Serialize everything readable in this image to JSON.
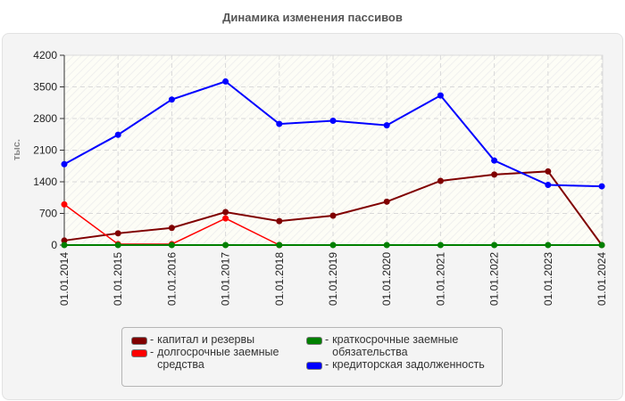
{
  "title": "Динамика изменения пассивов",
  "chart_data": {
    "type": "line",
    "title": "Динамика изменения пассивов",
    "xlabel": "",
    "ylabel": "тыс.",
    "ylim": [
      0,
      4200
    ],
    "yticks": [
      0,
      700,
      1400,
      2100,
      2800,
      3500,
      4200
    ],
    "grid": true,
    "legend_position": "bottom",
    "categories": [
      "01.01.2014",
      "01.01.2015",
      "01.01.2016",
      "01.01.2017",
      "01.01.2018",
      "01.01.2019",
      "01.01.2020",
      "01.01.2021",
      "01.01.2022",
      "01.01.2023",
      "01.01.2024"
    ],
    "series": [
      {
        "name": "капитал и резервы",
        "color": "#800000",
        "values": [
          100,
          260,
          380,
          730,
          530,
          650,
          960,
          1420,
          1560,
          1630,
          0
        ]
      },
      {
        "name": "долгосрочные заемные средства",
        "color": "#ff0000",
        "values": [
          900,
          20,
          20,
          590,
          0,
          null,
          null,
          null,
          null,
          null,
          null
        ]
      },
      {
        "name": "краткосрочные заемные обязательства",
        "color": "#008000",
        "values": [
          0,
          0,
          0,
          0,
          0,
          0,
          0,
          0,
          0,
          0,
          0
        ]
      },
      {
        "name": "кредиторская задолженность",
        "color": "#0000ff",
        "values": [
          1790,
          2440,
          3220,
          3620,
          2680,
          2750,
          2650,
          3310,
          1870,
          1330,
          1300
        ]
      }
    ]
  },
  "legend": {
    "items": [
      {
        "label": "капитал и резервы",
        "color": "#800000"
      },
      {
        "label": "долгосрочные заемные\nсредства",
        "color": "#ff0000"
      },
      {
        "label": "краткосрочные заемные\nобязательства",
        "color": "#008000"
      },
      {
        "label": "кредиторская задолженность",
        "color": "#0000ff"
      }
    ]
  }
}
